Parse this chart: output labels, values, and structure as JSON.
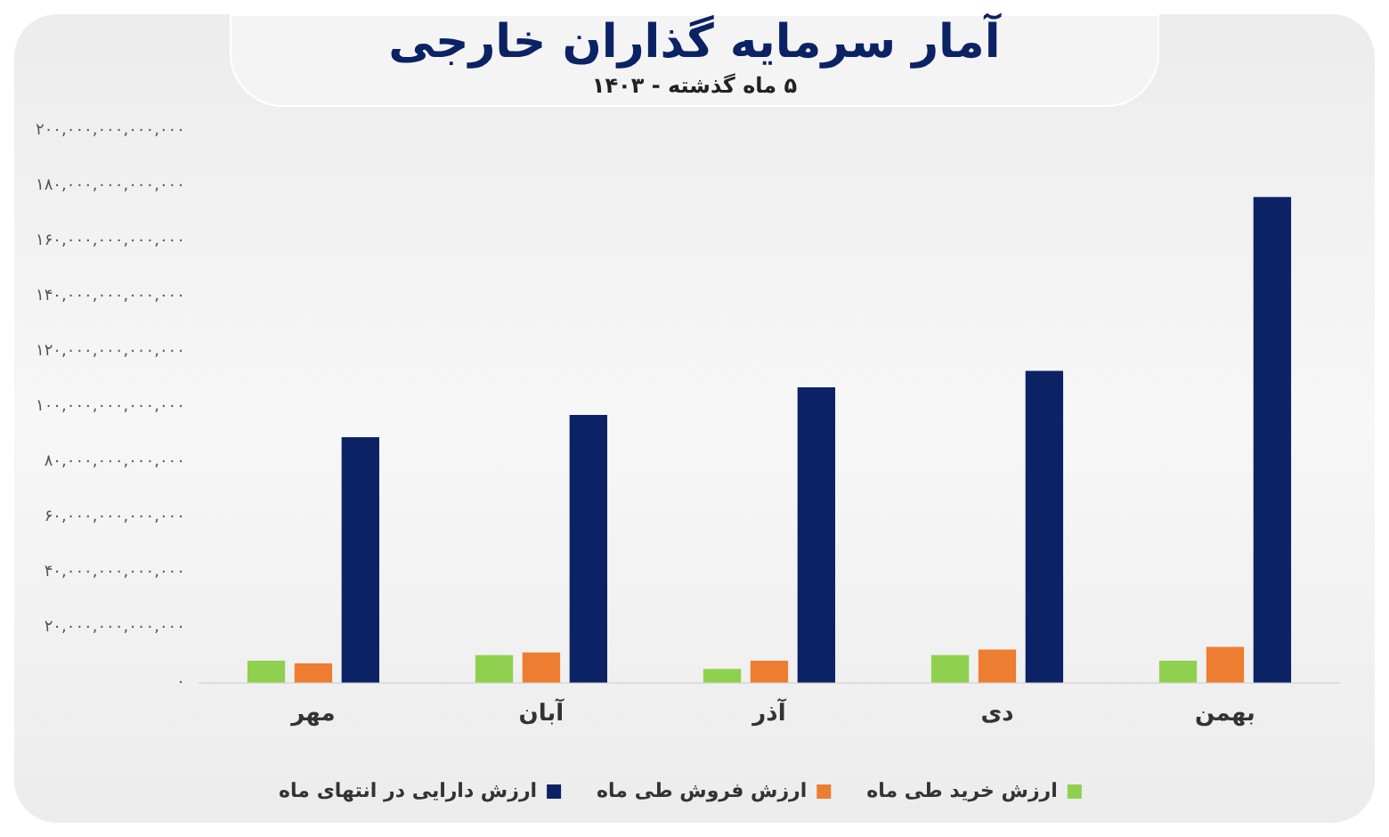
{
  "chart_data": {
    "type": "bar",
    "title": "آمار سرمایه گذاران خارجی",
    "subtitle": "۵ ماه گذشته - ۱۴۰۳",
    "categories": [
      "مهر",
      "آبان",
      "آذر",
      "دی",
      "بهمن"
    ],
    "series": [
      {
        "name": "ارزش خرید طی ماه",
        "color": "#8fd14f",
        "values": [
          8000000000000,
          10000000000000,
          5000000000000,
          10000000000000,
          8000000000000
        ]
      },
      {
        "name": "ارزش فروش طی ماه",
        "color": "#ed7d31",
        "values": [
          7000000000000,
          11000000000000,
          8000000000000,
          12000000000000,
          13000000000000
        ]
      },
      {
        "name": "ارزش دارایی در انتهای ماه",
        "color": "#0b2265",
        "values": [
          89000000000000,
          97000000000000,
          107000000000000,
          113000000000000,
          176000000000000
        ]
      }
    ],
    "ylim": [
      0,
      200000000000000
    ],
    "yticks": [
      {
        "value": 0,
        "label": "۰"
      },
      {
        "value": 20000000000000,
        "label": "۲۰,۰۰۰,۰۰۰,۰۰۰,۰۰۰"
      },
      {
        "value": 40000000000000,
        "label": "۴۰,۰۰۰,۰۰۰,۰۰۰,۰۰۰"
      },
      {
        "value": 60000000000000,
        "label": "۶۰,۰۰۰,۰۰۰,۰۰۰,۰۰۰"
      },
      {
        "value": 80000000000000,
        "label": "۸۰,۰۰۰,۰۰۰,۰۰۰,۰۰۰"
      },
      {
        "value": 100000000000000,
        "label": "۱۰۰,۰۰۰,۰۰۰,۰۰۰,۰۰۰"
      },
      {
        "value": 120000000000000,
        "label": "۱۲۰,۰۰۰,۰۰۰,۰۰۰,۰۰۰"
      },
      {
        "value": 140000000000000,
        "label": "۱۴۰,۰۰۰,۰۰۰,۰۰۰,۰۰۰"
      },
      {
        "value": 160000000000000,
        "label": "۱۶۰,۰۰۰,۰۰۰,۰۰۰,۰۰۰"
      },
      {
        "value": 180000000000000,
        "label": "۱۸۰,۰۰۰,۰۰۰,۰۰۰,۰۰۰"
      },
      {
        "value": 200000000000000,
        "label": "۲۰۰,۰۰۰,۰۰۰,۰۰۰,۰۰۰"
      }
    ],
    "grid": false,
    "legend": "bottom"
  }
}
